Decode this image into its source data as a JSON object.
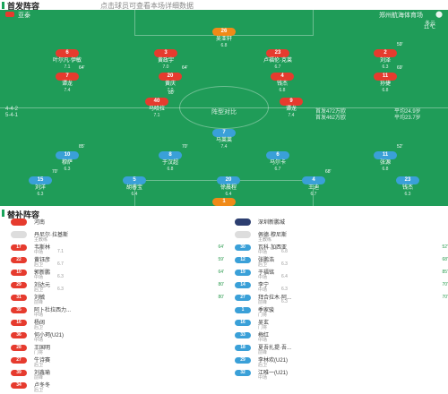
{
  "header": {
    "title": "首发阵容",
    "subtitle": "点击球员可查看本场详细数据"
  },
  "home": {
    "name": "亚泰",
    "formation_left": "4-4-2",
    "formation_left2": "5-4-1",
    "stat_left": "首发4 4 2 万欧",
    "color": "#e63b2e"
  },
  "away": {
    "name": "郑州航海体育场",
    "formation": "4-1-4-1",
    "stat_right": "平均24.9岁",
    "stat_right2": "平均23.7岁",
    "stat_mid1": "首发472万欧",
    "stat_mid2": "首发462万欧",
    "color": "#3aa0d8"
  },
  "weather": {
    "text": "多云",
    "temp": "11℃"
  },
  "middle_label": "阵型对比",
  "pitch_players": [
    {
      "num": "26",
      "name": "吴亚轩",
      "rating": "6.8",
      "side": "gk"
    },
    {
      "num": "6",
      "name": "叶尔凡·伊敏",
      "rating": "7.1",
      "side": "red"
    },
    {
      "num": "3",
      "name": "黄政宇",
      "rating": "7.0",
      "side": "red",
      "event": ""
    },
    {
      "num": "23",
      "name": "卢福伦·克莱",
      "rating": "6.7",
      "side": "red"
    },
    {
      "num": "2",
      "name": "刘泽",
      "rating": "6.3",
      "side": "red",
      "event": "59'"
    },
    {
      "num": "7",
      "name": "谭龙",
      "rating": "7.4",
      "side": "red",
      "event": "64'"
    },
    {
      "num": "20",
      "name": "黄庆",
      "rating": "7.0",
      "side": "red",
      "event": "64'"
    },
    {
      "num": "4",
      "name": "钱杰",
      "rating": "6.8",
      "side": "red"
    },
    {
      "num": "11",
      "name": "孙捷",
      "rating": "6.8",
      "side": "red",
      "event": "69'"
    },
    {
      "num": "40",
      "name": "马哈拉",
      "rating": "7.1",
      "side": "red",
      "event": "80'"
    },
    {
      "num": "9",
      "name": "谭龙",
      "rating": "7.4",
      "side": "red"
    },
    {
      "num": "7",
      "name": "马莱莱",
      "rating": "7.4",
      "side": "blue"
    },
    {
      "num": "10",
      "name": "穆萨",
      "rating": "6.3",
      "side": "blue",
      "event": "85'"
    },
    {
      "num": "8",
      "name": "于汉超",
      "rating": "6.8",
      "side": "blue",
      "event": "70'"
    },
    {
      "num": "6",
      "name": "马尔卡",
      "rating": "6.7",
      "side": "blue"
    },
    {
      "num": "11",
      "name": "张源",
      "rating": "6.8",
      "side": "blue",
      "event": "52'"
    },
    {
      "num": "15",
      "name": "刘洋",
      "rating": "6.3",
      "side": "blue",
      "event": "70'"
    },
    {
      "num": "5",
      "name": "胡睿宝",
      "rating": "6.4",
      "side": "blue"
    },
    {
      "num": "20",
      "name": "徐晨程",
      "rating": "6.4",
      "side": "blue"
    },
    {
      "num": "4",
      "name": "王迪",
      "rating": "6.7",
      "side": "blue",
      "event": "68'"
    },
    {
      "num": "23",
      "name": "钱杰",
      "rating": "6.3",
      "side": "blue"
    },
    {
      "num": "1",
      "name": "丁丁",
      "rating": "7.6",
      "side": "gk"
    }
  ],
  "subs": {
    "title": "替补阵容",
    "left_team": "河南",
    "right_team": "深圳新鹏城",
    "left_coach": "丹尼尔·拉基斯",
    "left_coach_role": "主教练",
    "right_coach": "佩德·穆尼斯",
    "right_coach_role": "主教练",
    "left": [
      {
        "num": "17",
        "name": "韦斯林",
        "sub": "中场",
        "rating": "7.1",
        "event": "64'"
      },
      {
        "num": "22",
        "name": "黄钰彦",
        "sub": "后卫",
        "rating": "6.7",
        "event": "59'"
      },
      {
        "num": "10",
        "name": "郭新鹏",
        "sub": "中场",
        "rating": "6.3",
        "event": "64'"
      },
      {
        "num": "29",
        "name": "刘达元",
        "sub": "后卫",
        "rating": "6.3",
        "event": "80'"
      },
      {
        "num": "31",
        "name": "刘毓",
        "sub": "前锋",
        "rating": "",
        "event": "80'"
      },
      {
        "num": "35",
        "name": "阿卜杜拉西力...",
        "sub": "中场",
        "rating": "",
        "event": ""
      },
      {
        "num": "16",
        "name": "杨阔",
        "sub": "后卫",
        "rating": "",
        "event": ""
      },
      {
        "num": "36",
        "name": "何小珂(U21)",
        "sub": "中场",
        "rating": "",
        "event": ""
      },
      {
        "num": "28",
        "name": "王国明",
        "sub": "门将",
        "rating": "",
        "event": ""
      },
      {
        "num": "27",
        "name": "牛诗赛",
        "sub": "后卫",
        "rating": "",
        "event": ""
      },
      {
        "num": "39",
        "name": "刘鑫瑜",
        "sub": "前锋",
        "rating": "",
        "event": ""
      },
      {
        "num": "34",
        "name": "卢冬冬",
        "sub": "后卫",
        "rating": "",
        "event": ""
      }
    ],
    "right": [
      {
        "num": "30",
        "name": "瓦科·加西亚",
        "sub": "中场",
        "rating": "6.8",
        "event": "52'"
      },
      {
        "num": "12",
        "name": "张鹏浩",
        "sub": "后卫",
        "rating": "6.3",
        "event": "68'"
      },
      {
        "num": "19",
        "name": "于福铭",
        "sub": "中场",
        "rating": "6.4",
        "event": "85'"
      },
      {
        "num": "14",
        "name": "李宁",
        "sub": "中场",
        "rating": "6.3",
        "event": "70'"
      },
      {
        "num": "27",
        "name": "拜合拉木·阿...",
        "sub": "前锋",
        "rating": "6.3",
        "event": "70'"
      },
      {
        "num": "1",
        "name": "季家骏",
        "sub": "门将",
        "rating": "",
        "event": ""
      },
      {
        "num": "16",
        "name": "吴玄",
        "sub": "门将",
        "rating": "",
        "event": ""
      },
      {
        "num": "33",
        "name": "梅红",
        "sub": "中场",
        "rating": "",
        "event": ""
      },
      {
        "num": "18",
        "name": "夏吾扎提·吾...",
        "sub": "前锋",
        "rating": "",
        "event": ""
      },
      {
        "num": "29",
        "name": "李林欢(U21)",
        "sub": "后卫",
        "rating": "",
        "event": ""
      },
      {
        "num": "32",
        "name": "江唯一(U21)",
        "sub": "中场",
        "rating": "",
        "event": ""
      }
    ]
  }
}
